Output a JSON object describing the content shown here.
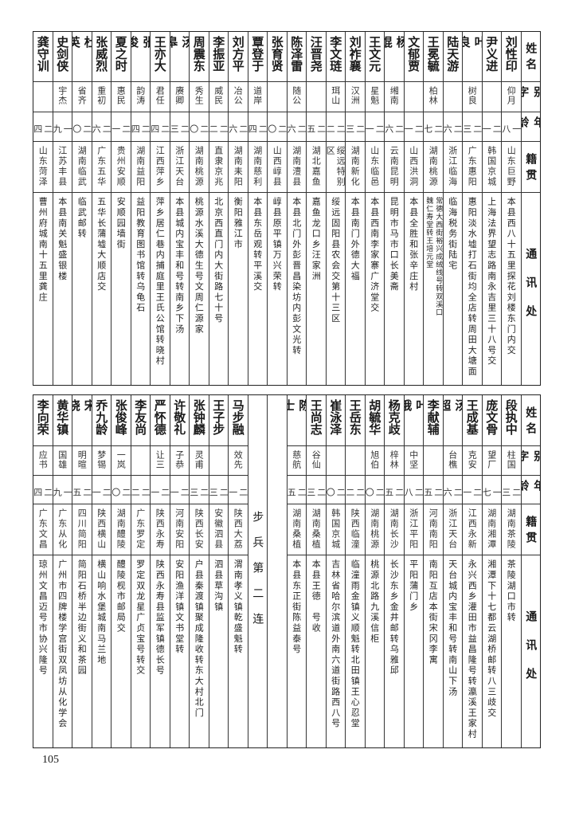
{
  "header": {
    "name": "姓名",
    "alias": "别字",
    "age": "年龄",
    "origin": "籍贯",
    "address": "通讯处"
  },
  "top_table": [
    {
      "name": "刘性印",
      "alias": "仰月",
      "age": "一八",
      "origin": "山东巨野",
      "address": "本县西八十五里探花刘楼东门内交"
    },
    {
      "name": "尹义进",
      "alias": "",
      "age": "二一",
      "origin": "韩国京城",
      "address": "上海法界望志路南永吉里三十八号交"
    },
    {
      "name": "叶良",
      "alias": "树良",
      "age": "二三",
      "origin": "广东惠阳",
      "address": "惠阳淡水墟打石街均全店转周田大塘面"
    },
    {
      "name": "陆天游",
      "alias": "",
      "age": "二六",
      "origin": "浙江临海",
      "address": "临海税务街陆宅"
    },
    {
      "name": "王冕毓",
      "alias": "柏林",
      "age": "二七",
      "origin": "湖南桃源",
      "address": [
        "常德大西街裕兴成绒线号转双溪口",
        "魏仁寿堂转王培元堂"
      ]
    },
    {
      "name": "文郁贾",
      "alias": "",
      "age": "二一",
      "origin": "山西洪洞",
      "address": "本县全胜和张辛庄村"
    },
    {
      "name": "杨焜",
      "alias": "缃南",
      "age": "二六",
      "origin": "云南昆明",
      "address": "昆明市马市口长美斋"
    },
    {
      "name": "王文元",
      "alias": "星魁",
      "age": "二一",
      "origin": "山东临邑",
      "address": "本县西南李家寨广济堂交"
    },
    {
      "name": "刘祚襄",
      "alias": "汉洲",
      "age": "二三",
      "origin": "湖南新化",
      "address": "本县南门外德大福"
    },
    {
      "name": "李文琏",
      "alias": "珥山",
      "age": "二二",
      "origin": "绥远特别区",
      "address": "绥远固阳县农会交第十三区"
    },
    {
      "name": "汪晋尧",
      "alias": "",
      "age": "二五",
      "origin": "湖北嘉鱼",
      "address": "嘉鱼龙口乡汪家洲"
    },
    {
      "name": "陈泽雷",
      "alias": "随公",
      "age": "二六",
      "origin": "湖南澧县",
      "address": "本县北门外彭晋昌染坊内彭文光转"
    },
    {
      "name": "张育贤",
      "alias": "",
      "age": "二〇",
      "origin": "山西崞县",
      "address": "崞县原平镇万兴荣转"
    },
    {
      "name": "覃登于",
      "alias": "道岸",
      "age": "二四",
      "origin": "湖南慈利",
      "address": "本县东岳观转平溪交"
    },
    {
      "name": "刘方平",
      "alias": "冶公",
      "age": "二六",
      "origin": "湖南耒阳",
      "address": "衡阳雅江市"
    },
    {
      "name": "李振亚",
      "alias": "威民",
      "age": "二二",
      "origin": "直隶京兆",
      "address": "北京西直门内大街路七十号"
    },
    {
      "name": "周震东",
      "alias": "秀生",
      "age": "二〇",
      "origin": "湖南桃源",
      "address": "桃源水溪大德生号文周仁源家"
    },
    {
      "name": "汤皋",
      "alias": "赓卿",
      "age": "二三",
      "origin": "浙江天台",
      "address": "本县城内宝丰和号转南乡下汤"
    },
    {
      "name": "王亦大",
      "alias": "君任",
      "age": "二四",
      "origin": "江西萍乡",
      "address": "萍乡居仁巷内捕庭里王氏公馆转晓村"
    },
    {
      "name": "张浚",
      "alias": "韵涛",
      "age": "二四",
      "origin": "湖南益阳",
      "address": "益阳教育图书馆转乌龟石"
    },
    {
      "name": "夏之时",
      "alias": "惠民",
      "age": "二一",
      "origin": "贵州安顺",
      "address": "安顺园墙街"
    },
    {
      "name": "张威烈",
      "alias": "重初",
      "age": "二六",
      "origin": "广东五华",
      "address": "五华长蒲墟大顺店交"
    },
    {
      "name": "杜英",
      "alias": "省齐",
      "age": "二〇",
      "origin": "湖南临武",
      "address": "临武邮转"
    },
    {
      "name": "史剑侠",
      "alias": "宇杰",
      "age": "一九",
      "origin": "江苏丰县",
      "address": "本县南关魁盛银楼"
    },
    {
      "name": "龚守训",
      "alias": "",
      "age": "二四",
      "origin": "山东菏泽",
      "address": "曹州府城南十五里龚庄"
    }
  ],
  "bottom_table": [
    {
      "name": "段执中",
      "alias": "柱国",
      "age": "二三",
      "origin": "湖南茶陵",
      "address": "茶陵湖口市转"
    },
    {
      "name": "庞文骨",
      "alias": "望厂",
      "age": "一七",
      "origin": "湖南湘潭",
      "address": "湘潭下十七都云湖桥邮转八三歧交"
    },
    {
      "name": "王成基",
      "alias": "克安",
      "age": "二一",
      "origin": "江西永新",
      "address": "永兴西乡灌田市益昌隆号转瀛溪王家村"
    },
    {
      "name": "汤超",
      "alias": "台樵",
      "age": "二六",
      "origin": "浙江天台",
      "address": "天台城内宝丰和号转南山下汤"
    },
    {
      "name": "李献辅",
      "alias": "",
      "age": "二五",
      "origin": "河南南阳",
      "address": "南阳互店本街宋冈李寓"
    },
    {
      "name": "叶俄",
      "alias": "中坚",
      "age": "二八",
      "origin": "浙江平阳",
      "address": "平阳蒲门乡"
    },
    {
      "name": "杨克歧",
      "alias": "梓林",
      "age": "二五",
      "origin": "湖南长沙",
      "address": "长沙东乡金井邮转乌雅邱"
    },
    {
      "name": "胡毓华",
      "alias": "旭伯",
      "age": "二〇",
      "origin": "湖南桃源",
      "address": "桃源北路九溪信柜"
    },
    {
      "name": "王岳东",
      "alias": "",
      "age": "二二",
      "origin": "陕西临潼",
      "address": "临潼雨金镇义顺魁转北田镇王心忍堂"
    },
    {
      "name": "崔泳泽",
      "alias": "",
      "age": "二〇",
      "origin": "韩国京城",
      "address": "吉林省哈尔滨道外南六道街路西八号"
    },
    {
      "name": "王尚志",
      "alias": "谷仙",
      "age": "二三",
      "origin": "湖南桑植",
      "address": "本县王德　号收"
    },
    {
      "name": "陈士",
      "alias": "慈航",
      "age": "二五",
      "origin": "湖南桑植",
      "address": "本县东正街陈益泰号"
    },
    {
      "blank": true
    },
    {
      "section": "步兵第二连"
    },
    {
      "name": "马步融",
      "alias": "效先",
      "age": "二一",
      "origin": "陕西大荔",
      "address": "渭南孝义镇乾盛魁转"
    },
    {
      "name": "王子步",
      "alias": "",
      "age": "二三",
      "origin": "安徽泗县",
      "address": "泗县草沟镇"
    },
    {
      "name": "张钟麟",
      "alias": "灵甫",
      "age": "二三",
      "origin": "陕西长安",
      "address": "户县秦渡镇聚成隆收转东大村北门"
    },
    {
      "name": "许敬礼",
      "alias": "子恭",
      "age": "二一",
      "origin": "河南安阳",
      "address": "安阳渔洋镇文书堂转"
    },
    {
      "name": "严怀德",
      "alias": "让三",
      "age": "二一",
      "origin": "陕西永寿",
      "address": "陕西永寿县监军镇德长号"
    },
    {
      "name": "李友尚",
      "alias": "",
      "age": "二二",
      "origin": "广东罗定",
      "address": "罗定双龙星广贞宝号转交"
    },
    {
      "name": "张俊峰",
      "alias": "一岚",
      "age": "二〇",
      "origin": "湖南醴陵",
      "address": "醴陵枧市邮局交"
    },
    {
      "name": "乔九龄",
      "alias": "梦锡",
      "age": "二一",
      "origin": "陕西横山",
      "address": "横山响水堡城南马兰地"
    },
    {
      "name": "宋晓",
      "alias": "明暄",
      "age": "二五",
      "origin": "四川简阳",
      "address": "简阳石桥半边街义和茶园"
    },
    {
      "name": "黄华镇",
      "alias": "国雄",
      "age": "一九",
      "origin": "广东从化",
      "address": "广州市四牌楼学宫街双凤坊从化学会"
    },
    {
      "name": "李向荣",
      "alias": "应书",
      "age": "二四",
      "origin": "广东文昌",
      "address": "琼州文昌迈号市协兴隆号"
    }
  ],
  "page_number": "105"
}
